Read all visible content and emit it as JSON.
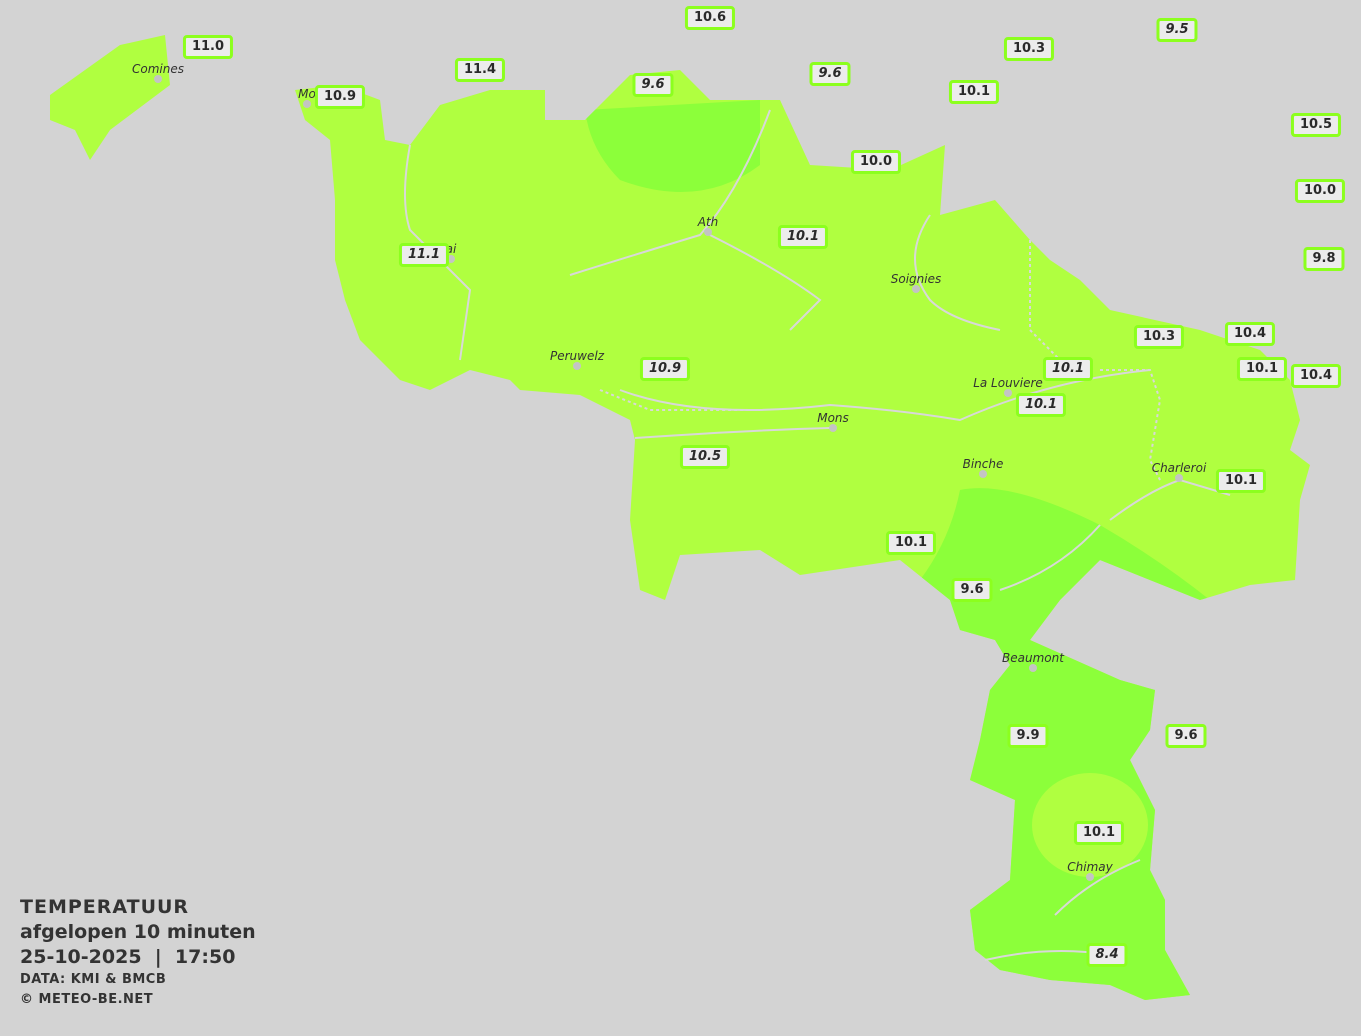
{
  "colors": {
    "background": "#d3d3d3",
    "zone_warm": "#b0ff40",
    "zone_cool": "#8cff3a",
    "label_border": "#8cff1e",
    "label_fill": "#ececec"
  },
  "legend": {
    "title": "TEMPERATUUR",
    "subtitle": "afgelopen 10 minuten",
    "datetime": "25-10-2025  |  17:50",
    "source": "DATA: KMI & BMCB",
    "copyright": "© METEO-BE.NET"
  },
  "stations": [
    {
      "value": "10.6",
      "italic": false
    },
    {
      "value": "11.0",
      "italic": false
    },
    {
      "value": "9.5",
      "italic": true
    },
    {
      "value": "10.3",
      "italic": false
    },
    {
      "value": "11.4",
      "italic": false
    },
    {
      "value": "9.6",
      "italic": true
    },
    {
      "value": "9.6",
      "italic": true
    },
    {
      "value": "10.1",
      "italic": false
    },
    {
      "value": "10.9",
      "italic": false
    },
    {
      "value": "10.5",
      "italic": false
    },
    {
      "value": "10.0",
      "italic": false
    },
    {
      "value": "10.0",
      "italic": false
    },
    {
      "value": "11.1",
      "italic": true
    },
    {
      "value": "10.1",
      "italic": true
    },
    {
      "value": "9.8",
      "italic": false
    },
    {
      "value": "10.3",
      "italic": false
    },
    {
      "value": "10.4",
      "italic": false
    },
    {
      "value": "10.1",
      "italic": true
    },
    {
      "value": "10.1",
      "italic": false
    },
    {
      "value": "10.4",
      "italic": false
    },
    {
      "value": "10.9",
      "italic": true
    },
    {
      "value": "10.1",
      "italic": true
    },
    {
      "value": "10.5",
      "italic": true
    },
    {
      "value": "10.1",
      "italic": false
    },
    {
      "value": "10.1",
      "italic": false
    },
    {
      "value": "9.6",
      "italic": false
    },
    {
      "value": "9.9",
      "italic": false
    },
    {
      "value": "9.6",
      "italic": false
    },
    {
      "value": "10.1",
      "italic": false
    },
    {
      "value": "8.4",
      "italic": true
    }
  ],
  "cities": [
    "Comines",
    "Mo",
    "ai",
    "Ath",
    "Soignies",
    "Peruwelz",
    "La Louviere",
    "Mons",
    "Binche",
    "Charleroi",
    "Beaumont",
    "Chimay"
  ]
}
